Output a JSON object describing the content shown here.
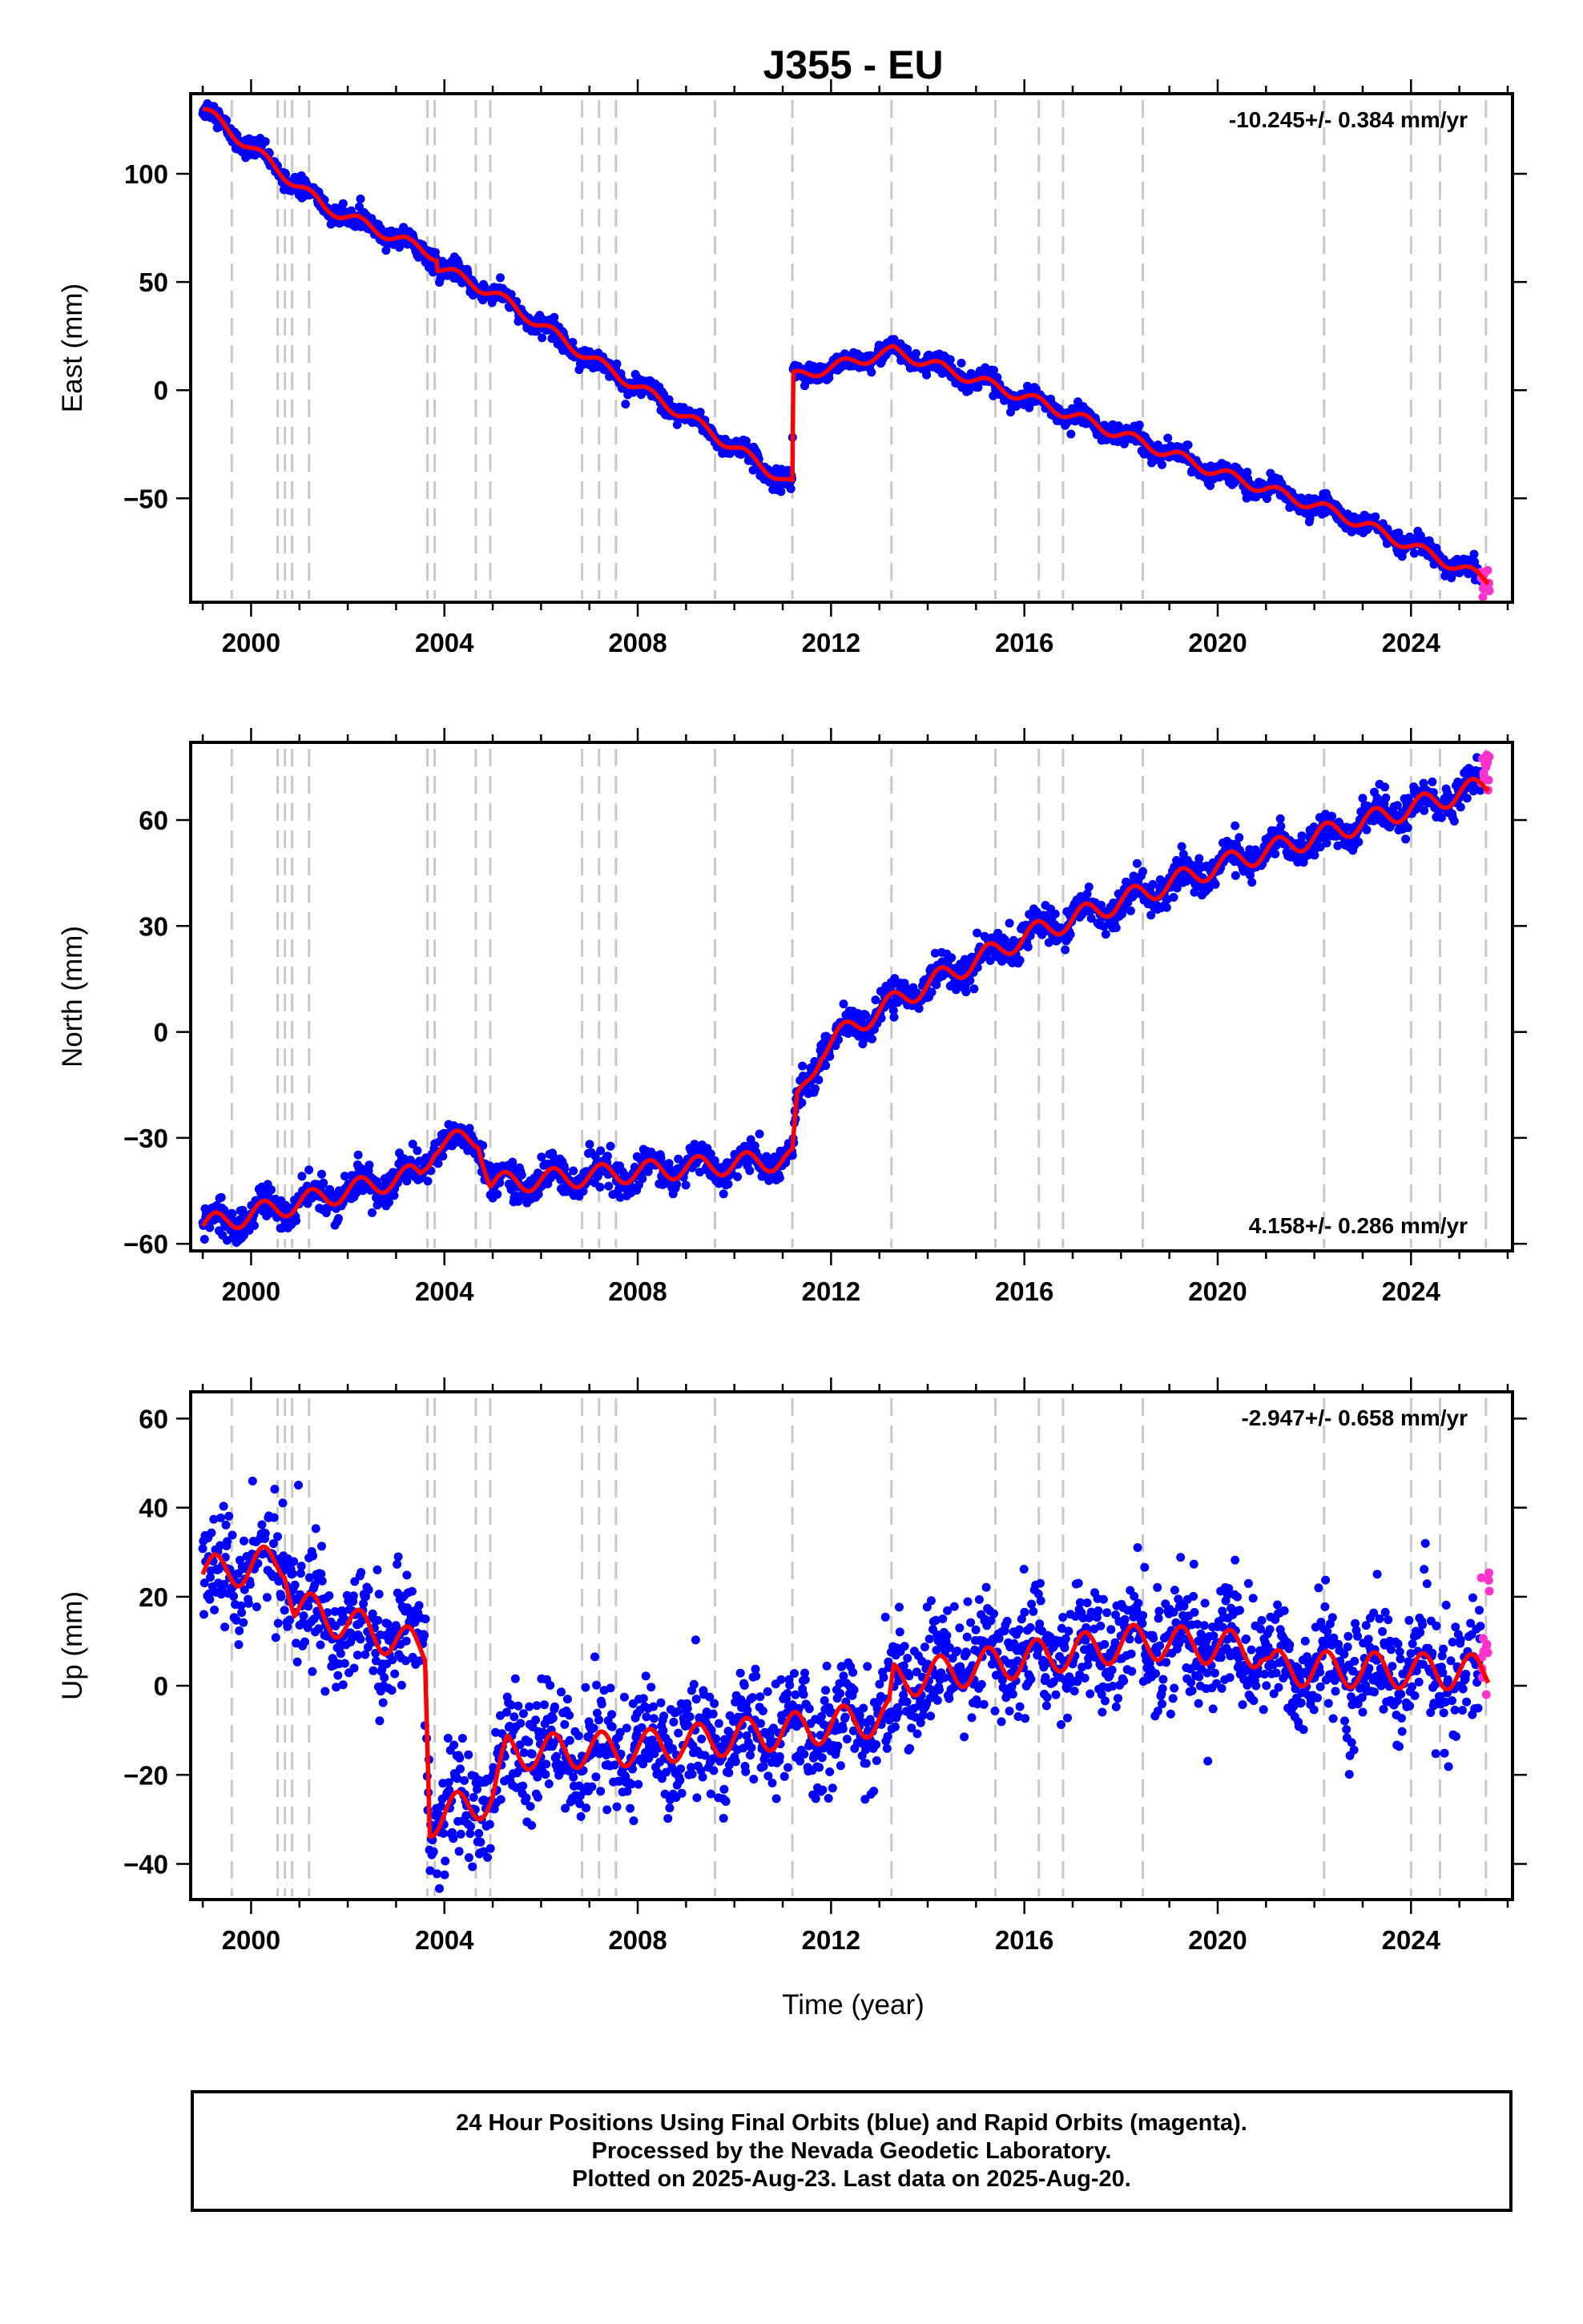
{
  "colors": {
    "final": "#0000ff",
    "rapid": "#ff33cc",
    "fit": "#ff0000",
    "events": "#c8c8c8"
  },
  "chart_data": {
    "type": "scatter",
    "title": "J355 - EU",
    "xlabel": "Time (year)",
    "xlim": [
      1998.75,
      2026.1
    ],
    "xticks": [
      2000,
      2004,
      2008,
      2012,
      2016,
      2020,
      2024
    ],
    "grid": false,
    "event_lines_years": [
      1999.6,
      2000.55,
      2000.7,
      2000.85,
      2001.2,
      2003.65,
      2003.8,
      2004.65,
      2004.95,
      2006.85,
      2007.2,
      2007.55,
      2009.6,
      2011.2,
      2013.25,
      2015.4,
      2016.3,
      2016.8,
      2018.45,
      2022.2,
      2024.0,
      2024.6,
      2025.55
    ],
    "panels": [
      {
        "name": "east",
        "ylabel": "East (mm)",
        "ylim": [
          -98,
          137
        ],
        "yticks": [
          100,
          50,
          0,
          -50
        ],
        "rate": "-10.245+/- 0.384 mm/yr",
        "rate_position": "top-right",
        "fit_points": [
          [
            1999.0,
            130
          ],
          [
            2001.5,
            85
          ],
          [
            2003.85,
            62
          ],
          [
            2003.86,
            57
          ],
          [
            2005.0,
            45
          ],
          [
            2007.0,
            15
          ],
          [
            2009.0,
            -12
          ],
          [
            2011.2,
            -44
          ],
          [
            2011.21,
            6
          ],
          [
            2013.3,
            18
          ],
          [
            2016.0,
            -3
          ],
          [
            2020.0,
            -38
          ],
          [
            2022.5,
            -57
          ],
          [
            2025.6,
            -88
          ]
        ],
        "annual_amplitude": 2.5,
        "noise_sigma": 2.2,
        "rapid_range": [
          2025.45,
          2025.63,
          -96,
          -83
        ]
      },
      {
        "name": "north",
        "ylabel": "North (mm)",
        "ylim": [
          -62,
          82
        ],
        "yticks": [
          60,
          30,
          0,
          -30,
          -60
        ],
        "rate": "4.158+/- 0.286 mm/yr",
        "rate_position": "bottom-right",
        "fit_points": [
          [
            1999.0,
            -55
          ],
          [
            2003.5,
            -40
          ],
          [
            2003.8,
            -32
          ],
          [
            2004.7,
            -30
          ],
          [
            2004.95,
            -43
          ],
          [
            2011.2,
            -36
          ],
          [
            2011.3,
            -20
          ],
          [
            2011.8,
            -5
          ],
          [
            2012.5,
            2
          ],
          [
            2013.5,
            10
          ],
          [
            2016.0,
            27
          ],
          [
            2020.0,
            47
          ],
          [
            2025.6,
            70
          ]
        ],
        "annual_amplitude": 3.0,
        "noise_sigma": 2.3,
        "rapid_range": [
          2025.45,
          2025.63,
          68,
          80
        ]
      },
      {
        "name": "up",
        "ylabel": "Up (mm)",
        "ylim": [
          -48,
          66
        ],
        "yticks": [
          60,
          40,
          20,
          0,
          -20,
          -40
        ],
        "rate": "-2.947+/- 0.658 mm/yr",
        "rate_position": "top-right",
        "fit_points": [
          [
            1999.0,
            25
          ],
          [
            2000.7,
            28
          ],
          [
            2000.9,
            18
          ],
          [
            2003.6,
            8
          ],
          [
            2003.7,
            -30
          ],
          [
            2005.0,
            -25
          ],
          [
            2005.3,
            -15
          ],
          [
            2008.0,
            -14
          ],
          [
            2011.2,
            -10
          ],
          [
            2013.2,
            -7
          ],
          [
            2013.3,
            1
          ],
          [
            2016.0,
            6
          ],
          [
            2018.45,
            10
          ],
          [
            2020.9,
            8
          ],
          [
            2021.1,
            4
          ],
          [
            2025.6,
            3
          ]
        ],
        "annual_amplitude": 4.0,
        "noise_sigma": 6.5,
        "rapid_range": [
          2025.45,
          2025.63,
          -2,
          26
        ]
      }
    ]
  },
  "footer": {
    "line1": "24 Hour Positions Using Final Orbits (blue) and Rapid Orbits (magenta).",
    "line2": "Processed by the Nevada Geodetic Laboratory.",
    "line3": "Plotted on 2025-Aug-23. Last data on 2025-Aug-20."
  }
}
